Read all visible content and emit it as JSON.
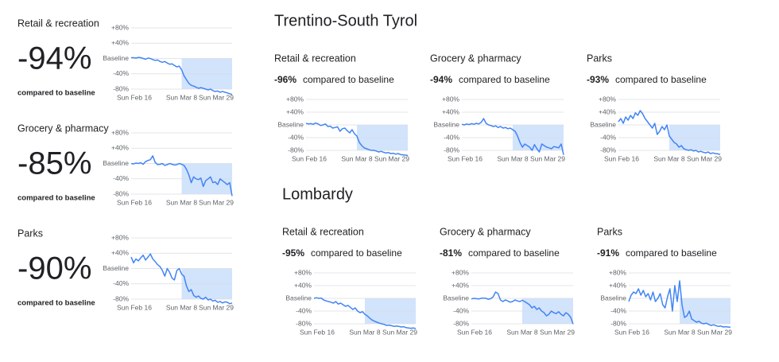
{
  "regions": [
    "Trentino-South Tyrol",
    "Lombardy"
  ],
  "chart_data": [
    {
      "type": "line",
      "title": "Retail & recreation",
      "headline": "-94%",
      "note": "compared to baseline",
      "color": "#4285f4",
      "categories": [
        "Sun Feb 16",
        null,
        null,
        null,
        null,
        null,
        null,
        null,
        null,
        null,
        null,
        null,
        null,
        null,
        null,
        null,
        null,
        null,
        null,
        null,
        null,
        "Sun Mar 8",
        null,
        null,
        null,
        null,
        null,
        null,
        null,
        null,
        null,
        null,
        null,
        null,
        null,
        null,
        null,
        null,
        null,
        null,
        null,
        null,
        "Sun Mar 29"
      ],
      "values": [
        2,
        2,
        1,
        3,
        2,
        0,
        -2,
        1,
        0,
        -3,
        -5,
        -4,
        -8,
        -10,
        -8,
        -12,
        -15,
        -14,
        -18,
        -22,
        -20,
        -30,
        -45,
        -55,
        -65,
        -70,
        -72,
        -75,
        -78,
        -76,
        -78,
        -80,
        -82,
        -80,
        -84,
        -86,
        -85,
        -88,
        -86,
        -88,
        -90,
        -92,
        -94
      ],
      "ylim": [
        -100,
        85
      ],
      "yticks": [
        {
          "value": 80,
          "label": "+80%"
        },
        {
          "value": 40,
          "label": "+40%"
        },
        {
          "value": 0,
          "label": "Baseline"
        },
        {
          "value": -40,
          "label": "-40%"
        },
        {
          "value": -80,
          "label": "-80%"
        }
      ]
    },
    {
      "type": "line",
      "title": "Grocery & pharmacy",
      "headline": "-85%",
      "note": "compared to baseline",
      "color": "#4285f4",
      "categories": [
        "Sun Feb 16",
        null,
        null,
        null,
        null,
        null,
        null,
        null,
        null,
        null,
        null,
        null,
        null,
        null,
        null,
        null,
        null,
        null,
        null,
        null,
        null,
        "Sun Mar 8",
        null,
        null,
        null,
        null,
        null,
        null,
        null,
        null,
        null,
        null,
        null,
        null,
        null,
        null,
        null,
        null,
        null,
        null,
        null,
        null,
        "Sun Mar 29"
      ],
      "values": [
        0,
        -1,
        1,
        0,
        2,
        -2,
        5,
        8,
        10,
        20,
        3,
        -3,
        -2,
        0,
        -5,
        -3,
        0,
        -2,
        -4,
        -3,
        0,
        -2,
        -5,
        -15,
        -30,
        -50,
        -35,
        -40,
        -42,
        -38,
        -60,
        -45,
        -40,
        -35,
        -50,
        -48,
        -55,
        -40,
        -45,
        -50,
        -55,
        -50,
        -85
      ],
      "ylim": [
        -100,
        85
      ],
      "yticks": [
        {
          "value": 80,
          "label": "+80%"
        },
        {
          "value": 40,
          "label": "+40%"
        },
        {
          "value": 0,
          "label": "Baseline"
        },
        {
          "value": -40,
          "label": "-40%"
        },
        {
          "value": -80,
          "label": "-80%"
        }
      ]
    },
    {
      "type": "line",
      "title": "Parks",
      "headline": "-90%",
      "note": "compared to baseline",
      "color": "#4285f4",
      "categories": [
        "Sun Feb 16",
        null,
        null,
        null,
        null,
        null,
        null,
        null,
        null,
        null,
        null,
        null,
        null,
        null,
        null,
        null,
        null,
        null,
        null,
        null,
        null,
        "Sun Mar 8",
        null,
        null,
        null,
        null,
        null,
        null,
        null,
        null,
        null,
        null,
        null,
        null,
        null,
        null,
        null,
        null,
        null,
        null,
        null,
        null,
        "Sun Mar 29"
      ],
      "values": [
        30,
        15,
        25,
        20,
        28,
        35,
        22,
        30,
        38,
        25,
        18,
        10,
        5,
        -5,
        -20,
        0,
        -10,
        -25,
        -30,
        -5,
        0,
        -15,
        -20,
        -45,
        -60,
        -55,
        -70,
        -75,
        -72,
        -78,
        -80,
        -75,
        -82,
        -80,
        -85,
        -83,
        -88,
        -86,
        -90,
        -87,
        -88,
        -92,
        -90
      ],
      "ylim": [
        -100,
        85
      ],
      "yticks": [
        {
          "value": 80,
          "label": "+80%"
        },
        {
          "value": 40,
          "label": "+40%"
        },
        {
          "value": 0,
          "label": "Baseline"
        },
        {
          "value": -40,
          "label": "-40%"
        },
        {
          "value": -80,
          "label": "-80%"
        }
      ]
    },
    {
      "type": "line",
      "title": "Retail & recreation",
      "headline": "-96%",
      "note": "compared to baseline",
      "color": "#4285f4",
      "categories": [
        "Sun Feb 16",
        null,
        null,
        null,
        null,
        null,
        null,
        null,
        null,
        null,
        null,
        null,
        null,
        null,
        null,
        null,
        null,
        null,
        null,
        null,
        null,
        "Sun Mar 8",
        null,
        null,
        null,
        null,
        null,
        null,
        null,
        null,
        null,
        null,
        null,
        null,
        null,
        null,
        null,
        null,
        null,
        null,
        null,
        null,
        "Sun Mar 29"
      ],
      "values": [
        5,
        3,
        4,
        2,
        6,
        3,
        -2,
        0,
        3,
        -5,
        -4,
        -10,
        -8,
        -6,
        -20,
        -12,
        -10,
        -18,
        -25,
        -15,
        -28,
        -35,
        -55,
        -65,
        -72,
        -75,
        -78,
        -80,
        -80,
        -82,
        -85,
        -83,
        -86,
        -88,
        -87,
        -90,
        -89,
        -92,
        -90,
        -93,
        -94,
        -95,
        -96
      ],
      "ylim": [
        -100,
        85
      ],
      "yticks": [
        {
          "value": 80,
          "label": "+80%"
        },
        {
          "value": 40,
          "label": "+40%"
        },
        {
          "value": 0,
          "label": "Baseline"
        },
        {
          "value": -40,
          "label": "-40%"
        },
        {
          "value": -80,
          "label": "-80%"
        }
      ]
    },
    {
      "type": "line",
      "title": "Grocery & pharmacy",
      "headline": "-94%",
      "note": "compared to baseline",
      "color": "#4285f4",
      "categories": [
        "Sun Feb 16",
        null,
        null,
        null,
        null,
        null,
        null,
        null,
        null,
        null,
        null,
        null,
        null,
        null,
        null,
        null,
        null,
        null,
        null,
        null,
        null,
        "Sun Mar 8",
        null,
        null,
        null,
        null,
        null,
        null,
        null,
        null,
        null,
        null,
        null,
        null,
        null,
        null,
        null,
        null,
        null,
        null,
        null,
        null,
        "Sun Mar 29"
      ],
      "values": [
        2,
        0,
        3,
        1,
        4,
        2,
        5,
        3,
        8,
        20,
        5,
        0,
        -2,
        -5,
        -3,
        -8,
        -5,
        -10,
        -8,
        -12,
        -10,
        -15,
        -20,
        -35,
        -55,
        -70,
        -60,
        -65,
        -70,
        -80,
        -62,
        -75,
        -85,
        -60,
        -65,
        -70,
        -72,
        -75,
        -68,
        -70,
        -72,
        -60,
        -94
      ],
      "ylim": [
        -100,
        85
      ],
      "yticks": [
        {
          "value": 80,
          "label": "+80%"
        },
        {
          "value": 40,
          "label": "+40%"
        },
        {
          "value": 0,
          "label": "Baseline"
        },
        {
          "value": -40,
          "label": "-40%"
        },
        {
          "value": -80,
          "label": "-80%"
        }
      ]
    },
    {
      "type": "line",
      "title": "Parks",
      "headline": "-93%",
      "note": "compared to baseline",
      "color": "#4285f4",
      "categories": [
        "Sun Feb 16",
        null,
        null,
        null,
        null,
        null,
        null,
        null,
        null,
        null,
        null,
        null,
        null,
        null,
        null,
        null,
        null,
        null,
        null,
        null,
        null,
        "Sun Mar 8",
        null,
        null,
        null,
        null,
        null,
        null,
        null,
        null,
        null,
        null,
        null,
        null,
        null,
        null,
        null,
        null,
        null,
        null,
        null,
        null,
        "Sun Mar 29"
      ],
      "values": [
        10,
        20,
        5,
        25,
        15,
        30,
        20,
        38,
        30,
        45,
        35,
        20,
        10,
        0,
        -10,
        5,
        -30,
        -20,
        -5,
        -15,
        0,
        -35,
        -45,
        -55,
        -60,
        -70,
        -65,
        -75,
        -78,
        -80,
        -78,
        -82,
        -80,
        -85,
        -83,
        -86,
        -88,
        -85,
        -90,
        -88,
        -90,
        -91,
        -93
      ],
      "ylim": [
        -100,
        85
      ],
      "yticks": [
        {
          "value": 80,
          "label": "+80%"
        },
        {
          "value": 40,
          "label": "+40%"
        },
        {
          "value": 0,
          "label": "Baseline"
        },
        {
          "value": -40,
          "label": "-40%"
        },
        {
          "value": -80,
          "label": "-80%"
        }
      ]
    },
    {
      "type": "line",
      "title": "Retail & recreation",
      "headline": "-95%",
      "note": "compared to baseline",
      "color": "#4285f4",
      "categories": [
        "Sun Feb 16",
        null,
        null,
        null,
        null,
        null,
        null,
        null,
        null,
        null,
        null,
        null,
        null,
        null,
        null,
        null,
        null,
        null,
        null,
        null,
        null,
        "Sun Mar 8",
        null,
        null,
        null,
        null,
        null,
        null,
        null,
        null,
        null,
        null,
        null,
        null,
        null,
        null,
        null,
        null,
        null,
        null,
        null,
        null,
        "Sun Mar 29"
      ],
      "values": [
        0,
        2,
        0,
        1,
        -5,
        -8,
        -10,
        -12,
        -15,
        -10,
        -18,
        -15,
        -20,
        -25,
        -22,
        -28,
        -35,
        -30,
        -40,
        -45,
        -42,
        -50,
        -55,
        -62,
        -68,
        -72,
        -75,
        -78,
        -80,
        -82,
        -85,
        -84,
        -86,
        -88,
        -87,
        -88,
        -90,
        -89,
        -92,
        -93,
        -94,
        -93,
        -95
      ],
      "ylim": [
        -100,
        85
      ],
      "yticks": [
        {
          "value": 80,
          "label": "+80%"
        },
        {
          "value": 40,
          "label": "+40%"
        },
        {
          "value": 0,
          "label": "Baseline"
        },
        {
          "value": -40,
          "label": "-40%"
        },
        {
          "value": -80,
          "label": "-80%"
        }
      ]
    },
    {
      "type": "line",
      "title": "Grocery & pharmacy",
      "headline": "-81%",
      "note": "compared to baseline",
      "color": "#4285f4",
      "categories": [
        "Sun Feb 16",
        null,
        null,
        null,
        null,
        null,
        null,
        null,
        null,
        null,
        null,
        null,
        null,
        null,
        null,
        null,
        null,
        null,
        null,
        null,
        null,
        "Sun Mar 8",
        null,
        null,
        null,
        null,
        null,
        null,
        null,
        null,
        null,
        null,
        null,
        null,
        null,
        null,
        null,
        null,
        null,
        null,
        null,
        null,
        "Sun Mar 29"
      ],
      "values": [
        -2,
        0,
        -1,
        -2,
        0,
        1,
        0,
        -3,
        -1,
        5,
        20,
        15,
        -5,
        -10,
        -5,
        -8,
        -12,
        -10,
        -5,
        -8,
        -10,
        -6,
        -10,
        -15,
        -20,
        -30,
        -25,
        -35,
        -30,
        -40,
        -45,
        -55,
        -50,
        -40,
        -45,
        -48,
        -42,
        -50,
        -55,
        -45,
        -50,
        -60,
        -81
      ],
      "ylim": [
        -100,
        85
      ],
      "yticks": [
        {
          "value": 80,
          "label": "+80%"
        },
        {
          "value": 40,
          "label": "+40%"
        },
        {
          "value": 0,
          "label": "Baseline"
        },
        {
          "value": -40,
          "label": "-40%"
        },
        {
          "value": -80,
          "label": "-80%"
        }
      ]
    },
    {
      "type": "line",
      "title": "Parks",
      "headline": "-91%",
      "note": "compared to baseline",
      "color": "#4285f4",
      "categories": [
        "Sun Feb 16",
        null,
        null,
        null,
        null,
        null,
        null,
        null,
        null,
        null,
        null,
        null,
        null,
        null,
        null,
        null,
        null,
        null,
        null,
        null,
        null,
        "Sun Mar 8",
        null,
        null,
        null,
        null,
        null,
        null,
        null,
        null,
        null,
        null,
        null,
        null,
        null,
        null,
        null,
        null,
        null,
        null,
        null,
        null,
        "Sun Mar 29"
      ],
      "values": [
        -10,
        10,
        20,
        15,
        30,
        10,
        25,
        5,
        15,
        -5,
        20,
        -10,
        0,
        15,
        -20,
        -30,
        5,
        30,
        -40,
        40,
        -10,
        55,
        -20,
        -60,
        -55,
        -40,
        -65,
        -70,
        -75,
        -72,
        -78,
        -80,
        -78,
        -82,
        -85,
        -83,
        -86,
        -88,
        -87,
        -90,
        -89,
        -90,
        -91
      ],
      "ylim": [
        -100,
        85
      ],
      "yticks": [
        {
          "value": 80,
          "label": "+80%"
        },
        {
          "value": 40,
          "label": "+40%"
        },
        {
          "value": 0,
          "label": "Baseline"
        },
        {
          "value": -40,
          "label": "-40%"
        },
        {
          "value": -80,
          "label": "-80%"
        }
      ]
    }
  ]
}
